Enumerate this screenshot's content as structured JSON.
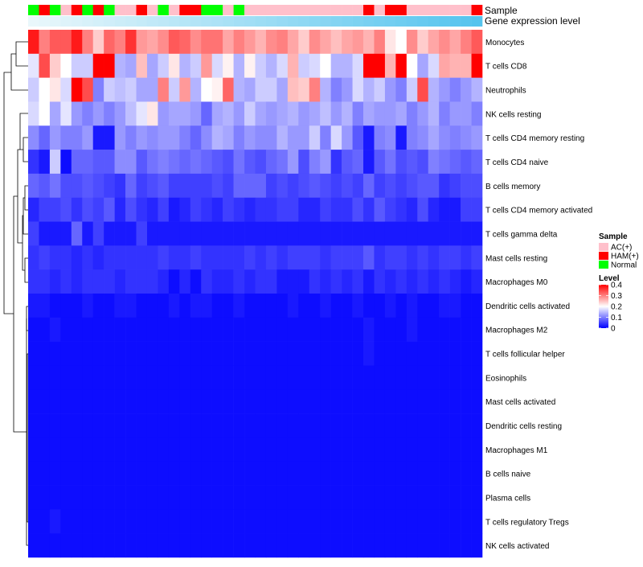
{
  "chart_data": {
    "type": "heatmap",
    "title": "",
    "annotation_rows": [
      {
        "name": "Sample",
        "label": "Sample"
      },
      {
        "name": "Gene expression level",
        "label": "Gene expression level"
      }
    ],
    "sample_groups": [
      "AC(+)",
      "HAM(+)",
      "Normal"
    ],
    "group_colors": {
      "AC(+)": "#ffc0cb",
      "HAM(+)": "#ff0000",
      "Normal": "#00ff00"
    },
    "expression_gradient": [
      "#e9f7fb",
      "#55c4ee"
    ],
    "columns": [
      "Normal",
      "HAM(+)",
      "Normal",
      "AC(+)",
      "HAM(+)",
      "Normal",
      "HAM(+)",
      "Normal",
      "AC(+)",
      "AC(+)",
      "HAM(+)",
      "AC(+)",
      "Normal",
      "AC(+)",
      "HAM(+)",
      "HAM(+)",
      "Normal",
      "Normal",
      "AC(+)",
      "Normal",
      "AC(+)",
      "AC(+)",
      "AC(+)",
      "AC(+)",
      "AC(+)",
      "AC(+)",
      "AC(+)",
      "AC(+)",
      "AC(+)",
      "AC(+)",
      "AC(+)",
      "HAM(+)",
      "AC(+)",
      "HAM(+)",
      "HAM(+)",
      "AC(+)",
      "AC(+)",
      "AC(+)",
      "AC(+)",
      "AC(+)",
      "AC(+)",
      "HAM(+)"
    ],
    "rows": [
      "Monocytes",
      "T cells CD8",
      "Neutrophils",
      "NK cells resting",
      "T cells CD4 memory resting",
      "T cells CD4 naive",
      "B cells memory",
      "T cells CD4 memory activated",
      "T cells gamma delta",
      "Mast cells resting",
      "Macrophages M0",
      "Dendritic cells activated",
      "Macrophages M2",
      "T cells follicular helper",
      "Eosinophils",
      "Mast cells activated",
      "Dendritic cells resting",
      "Macrophages M1",
      "B cells naive",
      "Plasma cells",
      "T cells regulatory  Tregs",
      "NK cells activated"
    ],
    "values": [
      [
        0.38,
        0.3,
        0.33,
        0.33,
        0.38,
        0.3,
        0.24,
        0.32,
        0.3,
        0.36,
        0.28,
        0.27,
        0.29,
        0.33,
        0.32,
        0.29,
        0.31,
        0.31,
        0.27,
        0.3,
        0.28,
        0.26,
        0.29,
        0.3,
        0.27,
        0.24,
        0.29,
        0.27,
        0.25,
        0.27,
        0.28,
        0.26,
        0.3,
        0.22,
        0.2,
        0.29,
        0.24,
        0.27,
        0.29,
        0.27,
        0.3,
        0.33
      ],
      [
        0.18,
        0.34,
        0.24,
        0.2,
        0.16,
        0.16,
        0.4,
        0.4,
        0.14,
        0.13,
        0.25,
        0.13,
        0.16,
        0.22,
        0.14,
        0.16,
        0.28,
        0.17,
        0.21,
        0.14,
        0.21,
        0.16,
        0.14,
        0.17,
        0.26,
        0.16,
        0.17,
        0.2,
        0.14,
        0.14,
        0.17,
        0.4,
        0.4,
        0.26,
        0.4,
        0.2,
        0.13,
        0.17,
        0.27,
        0.26,
        0.26,
        0.4
      ],
      [
        0.16,
        0.2,
        0.22,
        0.17,
        0.4,
        0.34,
        0.1,
        0.16,
        0.15,
        0.16,
        0.13,
        0.13,
        0.3,
        0.16,
        0.28,
        0.14,
        0.2,
        0.21,
        0.32,
        0.14,
        0.13,
        0.16,
        0.16,
        0.13,
        0.25,
        0.24,
        0.3,
        0.14,
        0.1,
        0.12,
        0.17,
        0.14,
        0.16,
        0.12,
        0.1,
        0.16,
        0.34,
        0.14,
        0.12,
        0.1,
        0.12,
        0.14
      ],
      [
        0.17,
        0.2,
        0.13,
        0.18,
        0.12,
        0.1,
        0.12,
        0.1,
        0.12,
        0.15,
        0.18,
        0.22,
        0.12,
        0.13,
        0.13,
        0.12,
        0.08,
        0.13,
        0.14,
        0.12,
        0.16,
        0.13,
        0.12,
        0.13,
        0.14,
        0.12,
        0.13,
        0.15,
        0.12,
        0.14,
        0.1,
        0.13,
        0.12,
        0.12,
        0.13,
        0.1,
        0.12,
        0.14,
        0.1,
        0.12,
        0.12,
        0.1
      ],
      [
        0.11,
        0.08,
        0.12,
        0.1,
        0.1,
        0.12,
        0.02,
        0.02,
        0.12,
        0.1,
        0.12,
        0.11,
        0.12,
        0.12,
        0.1,
        0.08,
        0.11,
        0.14,
        0.13,
        0.1,
        0.12,
        0.11,
        0.11,
        0.14,
        0.12,
        0.12,
        0.16,
        0.1,
        0.17,
        0.12,
        0.07,
        0.02,
        0.1,
        0.11,
        0.02,
        0.1,
        0.11,
        0.13,
        0.11,
        0.1,
        0.11,
        0.12
      ],
      [
        0.04,
        0.02,
        0.16,
        0.01,
        0.08,
        0.08,
        0.07,
        0.07,
        0.11,
        0.11,
        0.07,
        0.09,
        0.1,
        0.09,
        0.08,
        0.09,
        0.08,
        0.07,
        0.06,
        0.09,
        0.07,
        0.06,
        0.08,
        0.09,
        0.12,
        0.06,
        0.1,
        0.12,
        0.04,
        0.07,
        0.08,
        0.02,
        0.07,
        0.09,
        0.06,
        0.07,
        0.06,
        0.1,
        0.09,
        0.08,
        0.07,
        0.08
      ],
      [
        0.08,
        0.07,
        0.09,
        0.06,
        0.06,
        0.07,
        0.06,
        0.05,
        0.04,
        0.08,
        0.05,
        0.06,
        0.07,
        0.05,
        0.05,
        0.05,
        0.05,
        0.06,
        0.05,
        0.08,
        0.08,
        0.08,
        0.05,
        0.06,
        0.05,
        0.06,
        0.07,
        0.06,
        0.05,
        0.06,
        0.05,
        0.08,
        0.05,
        0.06,
        0.05,
        0.06,
        0.07,
        0.07,
        0.04,
        0.05,
        0.06,
        0.06
      ],
      [
        0.03,
        0.05,
        0.05,
        0.06,
        0.04,
        0.06,
        0.05,
        0.07,
        0.03,
        0.06,
        0.04,
        0.03,
        0.05,
        0.02,
        0.03,
        0.05,
        0.04,
        0.03,
        0.05,
        0.04,
        0.03,
        0.04,
        0.04,
        0.05,
        0.05,
        0.03,
        0.03,
        0.05,
        0.04,
        0.04,
        0.06,
        0.04,
        0.07,
        0.05,
        0.04,
        0.03,
        0.06,
        0.03,
        0.02,
        0.02,
        0.05,
        0.05
      ],
      [
        0.05,
        0.02,
        0.02,
        0.02,
        0.08,
        0.02,
        0.05,
        0.02,
        0.02,
        0.02,
        0.05,
        0.02,
        0.02,
        0.02,
        0.02,
        0.02,
        0.02,
        0.02,
        0.02,
        0.02,
        0.02,
        0.02,
        0.02,
        0.02,
        0.02,
        0.02,
        0.02,
        0.02,
        0.02,
        0.02,
        0.02,
        0.02,
        0.02,
        0.02,
        0.02,
        0.02,
        0.02,
        0.02,
        0.02,
        0.02,
        0.02,
        0.02
      ],
      [
        0.04,
        0.05,
        0.04,
        0.04,
        0.03,
        0.04,
        0.03,
        0.04,
        0.04,
        0.04,
        0.04,
        0.04,
        0.05,
        0.04,
        0.04,
        0.05,
        0.04,
        0.04,
        0.04,
        0.04,
        0.05,
        0.04,
        0.05,
        0.04,
        0.05,
        0.05,
        0.05,
        0.04,
        0.05,
        0.05,
        0.05,
        0.07,
        0.04,
        0.05,
        0.05,
        0.04,
        0.05,
        0.04,
        0.05,
        0.05,
        0.04,
        0.05
      ],
      [
        0.04,
        0.04,
        0.03,
        0.04,
        0.03,
        0.04,
        0.04,
        0.04,
        0.03,
        0.04,
        0.04,
        0.04,
        0.03,
        0.01,
        0.03,
        0.01,
        0.04,
        0.03,
        0.03,
        0.04,
        0.03,
        0.04,
        0.04,
        0.02,
        0.02,
        0.02,
        0.04,
        0.03,
        0.04,
        0.03,
        0.04,
        0.02,
        0.04,
        0.03,
        0.04,
        0.03,
        0.04,
        0.03,
        0.04,
        0.03,
        0.02,
        0.03
      ],
      [
        0.02,
        0.02,
        0.01,
        0.01,
        0.01,
        0.02,
        0.01,
        0.01,
        0.02,
        0.02,
        0.01,
        0.01,
        0.01,
        0.02,
        0.01,
        0.02,
        0.02,
        0.01,
        0.01,
        0.02,
        0.01,
        0.01,
        0.01,
        0.01,
        0.02,
        0.01,
        0.01,
        0.02,
        0.01,
        0.01,
        0.02,
        0.01,
        0.01,
        0.02,
        0.01,
        0.02,
        0.01,
        0.01,
        0.02,
        0.02,
        0.01,
        0.01
      ],
      [
        0.01,
        0.01,
        0.02,
        0.01,
        0.01,
        0.01,
        0.01,
        0.01,
        0.01,
        0.01,
        0.01,
        0.01,
        0.01,
        0.01,
        0.01,
        0.01,
        0.01,
        0.01,
        0.01,
        0.01,
        0.01,
        0.01,
        0.01,
        0.01,
        0.01,
        0.01,
        0.01,
        0.01,
        0.01,
        0.01,
        0.01,
        0.02,
        0.01,
        0.01,
        0.01,
        0.02,
        0.01,
        0.01,
        0.01,
        0.01,
        0.01,
        0.01
      ],
      [
        0.01,
        0.01,
        0.01,
        0.01,
        0.01,
        0.01,
        0.01,
        0.01,
        0.01,
        0.01,
        0.01,
        0.01,
        0.01,
        0.01,
        0.01,
        0.01,
        0.01,
        0.01,
        0.01,
        0.01,
        0.01,
        0.01,
        0.01,
        0.01,
        0.01,
        0.01,
        0.01,
        0.01,
        0.01,
        0.01,
        0.01,
        0.02,
        0.01,
        0.01,
        0.01,
        0.01,
        0.01,
        0.01,
        0.01,
        0.01,
        0.01,
        0.01
      ],
      [
        0.01,
        0.01,
        0.01,
        0.01,
        0.01,
        0.01,
        0.01,
        0.01,
        0.01,
        0.01,
        0.01,
        0.01,
        0.01,
        0.01,
        0.01,
        0.01,
        0.01,
        0.01,
        0.01,
        0.01,
        0.01,
        0.01,
        0.01,
        0.01,
        0.01,
        0.01,
        0.01,
        0.01,
        0.01,
        0.01,
        0.01,
        0.01,
        0.01,
        0.01,
        0.01,
        0.01,
        0.01,
        0.01,
        0.01,
        0.01,
        0.01,
        0.01
      ],
      [
        0.01,
        0.01,
        0.01,
        0.01,
        0.01,
        0.01,
        0.01,
        0.01,
        0.01,
        0.01,
        0.01,
        0.01,
        0.01,
        0.01,
        0.01,
        0.01,
        0.01,
        0.01,
        0.01,
        0.01,
        0.01,
        0.01,
        0.01,
        0.01,
        0.01,
        0.01,
        0.01,
        0.01,
        0.01,
        0.01,
        0.01,
        0.01,
        0.01,
        0.01,
        0.01,
        0.01,
        0.01,
        0.01,
        0.01,
        0.01,
        0.01,
        0.01
      ],
      [
        0.01,
        0.01,
        0.01,
        0.01,
        0.01,
        0.01,
        0.01,
        0.01,
        0.01,
        0.01,
        0.01,
        0.01,
        0.01,
        0.01,
        0.01,
        0.01,
        0.01,
        0.01,
        0.01,
        0.01,
        0.01,
        0.01,
        0.01,
        0.01,
        0.01,
        0.01,
        0.01,
        0.01,
        0.01,
        0.01,
        0.01,
        0.01,
        0.01,
        0.01,
        0.01,
        0.01,
        0.01,
        0.01,
        0.01,
        0.01,
        0.01,
        0.01
      ],
      [
        0.01,
        0.01,
        0.01,
        0.01,
        0.01,
        0.01,
        0.01,
        0.01,
        0.01,
        0.01,
        0.01,
        0.01,
        0.01,
        0.01,
        0.01,
        0.01,
        0.01,
        0.01,
        0.01,
        0.01,
        0.01,
        0.01,
        0.01,
        0.01,
        0.01,
        0.01,
        0.01,
        0.01,
        0.01,
        0.01,
        0.01,
        0.01,
        0.01,
        0.01,
        0.01,
        0.01,
        0.01,
        0.01,
        0.01,
        0.01,
        0.01,
        0.01
      ],
      [
        0.01,
        0.01,
        0.01,
        0.01,
        0.01,
        0.01,
        0.01,
        0.01,
        0.01,
        0.01,
        0.01,
        0.01,
        0.01,
        0.01,
        0.01,
        0.01,
        0.01,
        0.01,
        0.01,
        0.01,
        0.01,
        0.01,
        0.01,
        0.01,
        0.01,
        0.01,
        0.01,
        0.01,
        0.01,
        0.01,
        0.01,
        0.01,
        0.01,
        0.01,
        0.01,
        0.01,
        0.01,
        0.01,
        0.01,
        0.01,
        0.01,
        0.01
      ],
      [
        0.01,
        0.01,
        0.01,
        0.01,
        0.01,
        0.01,
        0.01,
        0.01,
        0.01,
        0.01,
        0.01,
        0.01,
        0.01,
        0.01,
        0.01,
        0.01,
        0.01,
        0.01,
        0.01,
        0.01,
        0.01,
        0.01,
        0.01,
        0.01,
        0.01,
        0.01,
        0.01,
        0.01,
        0.01,
        0.01,
        0.01,
        0.01,
        0.01,
        0.01,
        0.01,
        0.01,
        0.01,
        0.01,
        0.01,
        0.01,
        0.01,
        0.01
      ],
      [
        0.01,
        0.01,
        0.02,
        0.01,
        0.01,
        0.01,
        0.01,
        0.01,
        0.01,
        0.01,
        0.01,
        0.01,
        0.01,
        0.01,
        0.01,
        0.01,
        0.01,
        0.01,
        0.01,
        0.01,
        0.01,
        0.01,
        0.01,
        0.01,
        0.01,
        0.01,
        0.01,
        0.01,
        0.01,
        0.01,
        0.01,
        0.01,
        0.01,
        0.01,
        0.01,
        0.01,
        0.01,
        0.01,
        0.01,
        0.01,
        0.01,
        0.01
      ],
      [
        0.01,
        0.01,
        0.01,
        0.01,
        0.01,
        0.01,
        0.01,
        0.01,
        0.01,
        0.01,
        0.01,
        0.01,
        0.01,
        0.01,
        0.01,
        0.01,
        0.01,
        0.01,
        0.01,
        0.01,
        0.01,
        0.01,
        0.01,
        0.01,
        0.01,
        0.01,
        0.01,
        0.01,
        0.01,
        0.01,
        0.01,
        0.01,
        0.01,
        0.01,
        0.01,
        0.01,
        0.01,
        0.01,
        0.01,
        0.01,
        0.01,
        0.01
      ]
    ],
    "color_scale": {
      "min": 0,
      "max": 0.4,
      "colors": [
        "#0000ff",
        "#ffffff",
        "#ff0000"
      ],
      "breaks": [
        0,
        0.2,
        0.4
      ]
    },
    "legend": {
      "sample_title": "Sample",
      "entries": [
        "AC(+)",
        "HAM(+)",
        "Normal"
      ],
      "level_title": "Level",
      "level_ticks": [
        "0.4",
        "0.3",
        "0.2",
        "0.1",
        "0"
      ],
      "placement": "right"
    }
  }
}
